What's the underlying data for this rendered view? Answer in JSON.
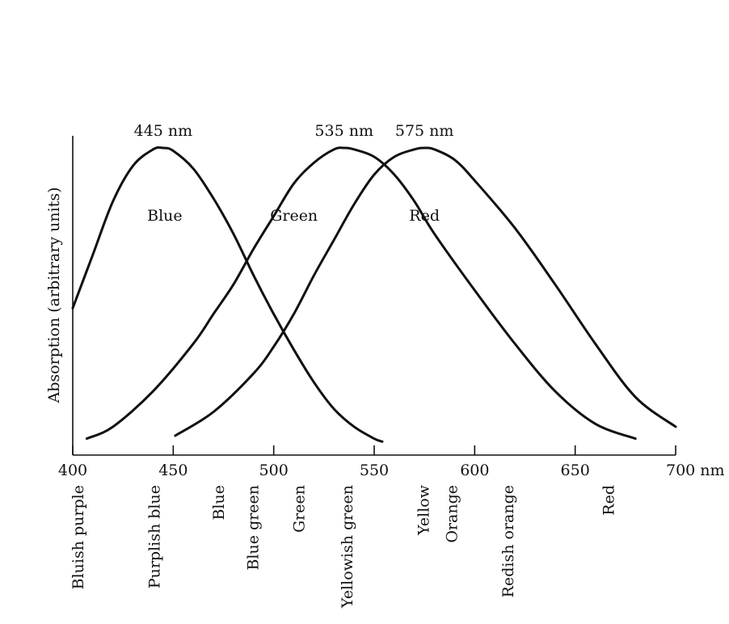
{
  "chart_data": {
    "type": "line",
    "title": "",
    "xlabel": "",
    "ylabel": "Absorption (arbitrary units)",
    "x_unit": "nm",
    "xlim": [
      400,
      700
    ],
    "ylim": [
      0,
      1
    ],
    "x_ticks": [
      400,
      450,
      500,
      550,
      600,
      650,
      700
    ],
    "x_tick_labels": [
      "400",
      "450",
      "500",
      "550",
      "600",
      "650",
      "700 nm"
    ],
    "grid": false,
    "legend": "none",
    "series": [
      {
        "name": "Blue",
        "peak": 445,
        "peak_label": "445 nm",
        "x": [
          400,
          410,
          420,
          430,
          440,
          445,
          450,
          460,
          470,
          480,
          490,
          500,
          510,
          520,
          530,
          540,
          550,
          554
        ],
        "y": [
          0.46,
          0.64,
          0.82,
          0.94,
          0.995,
          1.0,
          0.99,
          0.93,
          0.83,
          0.71,
          0.57,
          0.44,
          0.32,
          0.21,
          0.12,
          0.06,
          0.02,
          0.01
        ]
      },
      {
        "name": "Green",
        "peak": 535,
        "peak_label": "535 nm",
        "x": [
          407,
          420,
          440,
          460,
          470,
          480,
          490,
          500,
          510,
          520,
          530,
          535,
          540,
          550,
          560,
          570,
          580,
          600,
          620,
          640,
          660,
          680
        ],
        "y": [
          0.02,
          0.06,
          0.18,
          0.34,
          0.44,
          0.54,
          0.66,
          0.77,
          0.88,
          0.95,
          0.995,
          1.0,
          0.995,
          0.97,
          0.91,
          0.82,
          0.71,
          0.52,
          0.34,
          0.18,
          0.07,
          0.02
        ]
      },
      {
        "name": "Red",
        "peak": 575,
        "peak_label": "575 nm",
        "x": [
          451,
          470,
          490,
          500,
          510,
          520,
          530,
          540,
          550,
          560,
          570,
          575,
          580,
          590,
          600,
          620,
          640,
          660,
          680,
          700
        ],
        "y": [
          0.03,
          0.11,
          0.24,
          0.33,
          0.44,
          0.57,
          0.69,
          0.81,
          0.91,
          0.97,
          0.995,
          1.0,
          0.995,
          0.96,
          0.89,
          0.73,
          0.54,
          0.34,
          0.16,
          0.06
        ]
      }
    ],
    "color_names": [
      {
        "label": "Bluish purple",
        "x": 400
      },
      {
        "label": "Purplish blue",
        "x": 438
      },
      {
        "label": "Blue",
        "x": 470
      },
      {
        "label": "Blue green",
        "x": 487
      },
      {
        "label": "Green",
        "x": 510
      },
      {
        "label": "Yellowish green",
        "x": 534
      },
      {
        "label": "Yellow",
        "x": 572
      },
      {
        "label": "Orange",
        "x": 586
      },
      {
        "label": "Redish orange",
        "x": 614
      },
      {
        "label": "Red",
        "x": 664
      }
    ]
  }
}
